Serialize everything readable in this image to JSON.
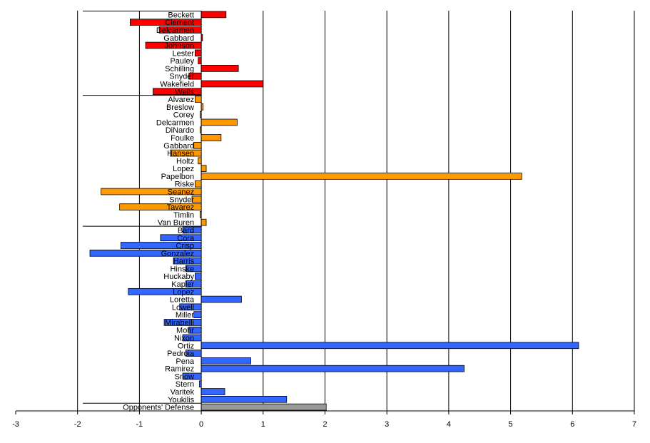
{
  "chart_data": {
    "type": "bar",
    "orientation": "horizontal",
    "title": "",
    "xlabel": "",
    "ylabel": "",
    "xlim": [
      -3,
      7
    ],
    "xticks": [
      -3,
      -2,
      -1,
      0,
      1,
      2,
      3,
      4,
      5,
      6,
      7
    ],
    "grid": "vertical",
    "legend": "none",
    "colors": {
      "red": "#ff0000",
      "orange": "#ff9900",
      "blue": "#3366ff",
      "gray": "#999999"
    },
    "bars": [
      {
        "name": "Beckett",
        "value": 0.4,
        "color": "red"
      },
      {
        "name": "Clement",
        "value": -1.15,
        "color": "red"
      },
      {
        "name": "Delcarmen",
        "value": -0.68,
        "color": "red"
      },
      {
        "name": "Gabbard",
        "value": 0.02,
        "color": "red"
      },
      {
        "name": "Johnson",
        "value": -0.9,
        "color": "red"
      },
      {
        "name": "Lester",
        "value": -0.1,
        "color": "red"
      },
      {
        "name": "Pauley",
        "value": -0.05,
        "color": "red"
      },
      {
        "name": "Schilling",
        "value": 0.6,
        "color": "red"
      },
      {
        "name": "Snyder",
        "value": -0.2,
        "color": "red"
      },
      {
        "name": "Wakefield",
        "value": 1.0,
        "color": "red"
      },
      {
        "name": "Wells",
        "value": -0.78,
        "color": "red"
      },
      {
        "name": "Alvarez",
        "value": -0.1,
        "color": "orange"
      },
      {
        "name": "Breslow",
        "value": 0.03,
        "color": "orange"
      },
      {
        "name": "Corey",
        "value": -0.02,
        "color": "orange"
      },
      {
        "name": "Delcarmen",
        "value": 0.58,
        "color": "orange"
      },
      {
        "name": "DiNardo",
        "value": -0.02,
        "color": "orange"
      },
      {
        "name": "Foulke",
        "value": 0.32,
        "color": "orange"
      },
      {
        "name": "Gabbard",
        "value": -0.12,
        "color": "orange"
      },
      {
        "name": "Hansen",
        "value": -0.5,
        "color": "orange"
      },
      {
        "name": "Holtz",
        "value": -0.05,
        "color": "orange"
      },
      {
        "name": "Lopez",
        "value": 0.08,
        "color": "orange"
      },
      {
        "name": "Papelbon",
        "value": 5.18,
        "color": "orange"
      },
      {
        "name": "Riske",
        "value": -0.1,
        "color": "orange"
      },
      {
        "name": "Seanez",
        "value": -1.62,
        "color": "orange"
      },
      {
        "name": "Snyder",
        "value": -0.15,
        "color": "orange"
      },
      {
        "name": "Tavarez",
        "value": -1.32,
        "color": "orange"
      },
      {
        "name": "Timlin",
        "value": -0.02,
        "color": "orange"
      },
      {
        "name": "Van Buren",
        "value": 0.08,
        "color": "orange"
      },
      {
        "name": "Bard",
        "value": -0.3,
        "color": "blue"
      },
      {
        "name": "Cora",
        "value": -0.66,
        "color": "blue"
      },
      {
        "name": "Crisp",
        "value": -1.3,
        "color": "blue"
      },
      {
        "name": "Gonzalez",
        "value": -1.8,
        "color": "blue"
      },
      {
        "name": "Harris",
        "value": -0.45,
        "color": "blue"
      },
      {
        "name": "Hinske",
        "value": -0.25,
        "color": "blue"
      },
      {
        "name": "Huckaby",
        "value": -0.1,
        "color": "blue"
      },
      {
        "name": "Kapler",
        "value": -0.25,
        "color": "blue"
      },
      {
        "name": "Lopez",
        "value": -1.18,
        "color": "blue"
      },
      {
        "name": "Loretta",
        "value": 0.65,
        "color": "blue"
      },
      {
        "name": "Lowell",
        "value": -0.35,
        "color": "blue"
      },
      {
        "name": "Miller",
        "value": -0.12,
        "color": "blue"
      },
      {
        "name": "Mirabelli",
        "value": -0.6,
        "color": "blue"
      },
      {
        "name": "Mohr",
        "value": -0.2,
        "color": "blue"
      },
      {
        "name": "Nixon",
        "value": -0.3,
        "color": "blue"
      },
      {
        "name": "Ortiz",
        "value": 6.1,
        "color": "blue"
      },
      {
        "name": "Pedroia",
        "value": -0.25,
        "color": "blue"
      },
      {
        "name": "Pena",
        "value": 0.8,
        "color": "blue"
      },
      {
        "name": "Ramirez",
        "value": 4.25,
        "color": "blue"
      },
      {
        "name": "Snow",
        "value": -0.3,
        "color": "blue"
      },
      {
        "name": "Stern",
        "value": -0.03,
        "color": "blue"
      },
      {
        "name": "Varitek",
        "value": 0.38,
        "color": "blue"
      },
      {
        "name": "Youkilis",
        "value": 1.38,
        "color": "blue"
      },
      {
        "name": "Opponents' Defense",
        "value": 2.02,
        "color": "gray"
      }
    ]
  }
}
